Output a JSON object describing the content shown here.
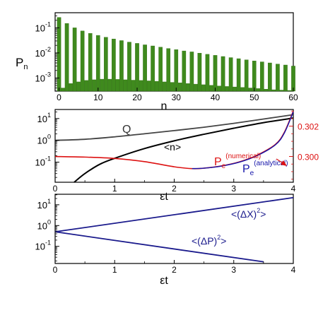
{
  "colors": {
    "bar": "#3f8a1d",
    "bar_edge": "#2f6f12",
    "q_curve": "#444444",
    "n_curve": "#000000",
    "pe_numerical": "#dd1111",
    "pe_analytical": "#1515aa",
    "variance": "#1a1a8c",
    "axis": "#000000"
  },
  "chart_data": [
    {
      "type": "bar",
      "ylabel_main": "P",
      "ylabel_sub": "n",
      "xlabel": "n",
      "xlim": [
        -1,
        60
      ],
      "ylim": [
        0.0003,
        0.4
      ],
      "yscale": "log",
      "yticks": [
        {
          "main": "10",
          "exp": "-1"
        },
        {
          "main": "10",
          "exp": "-2"
        },
        {
          "main": "10",
          "exp": "-3"
        }
      ],
      "xticks": [
        "0",
        "10",
        "20",
        "30",
        "40",
        "50",
        "60"
      ],
      "x": [
        0,
        2,
        4,
        6,
        8,
        10,
        12,
        14,
        16,
        18,
        20,
        22,
        24,
        26,
        28,
        30,
        32,
        34,
        36,
        38,
        40,
        42,
        44,
        46,
        48,
        50,
        52,
        54,
        56,
        58,
        60
      ],
      "values": [
        0.26,
        0.15,
        0.1,
        0.075,
        0.06,
        0.05,
        0.042,
        0.036,
        0.031,
        0.027,
        0.024,
        0.021,
        0.019,
        0.017,
        0.015,
        0.0135,
        0.012,
        0.011,
        0.0098,
        0.0088,
        0.008,
        0.0072,
        0.0065,
        0.0059,
        0.0053,
        0.0048,
        0.0044,
        0.004,
        0.0036,
        0.0033,
        0.003
      ],
      "x_odd": [
        1,
        3,
        5,
        7,
        9,
        11,
        13,
        15,
        17,
        19,
        21,
        23,
        25,
        27,
        29,
        31,
        33,
        35,
        37,
        39,
        41,
        43,
        45,
        47,
        49,
        51,
        53,
        55,
        57,
        59
      ],
      "values_odd": [
        0.0004,
        0.0006,
        0.0007,
        0.0008,
        0.00085,
        0.0009,
        0.0009,
        0.00088,
        0.00085,
        0.00082,
        0.0008,
        0.00077,
        0.00074,
        0.0007,
        0.00067,
        0.00064,
        0.0006,
        0.00057,
        0.00054,
        0.00051,
        0.00048,
        0.00046,
        0.00044,
        0.00042,
        0.0004,
        0.00038,
        0.00036,
        0.00034,
        0.00033,
        0.00032
      ]
    },
    {
      "type": "line",
      "xlabel": "εt",
      "xlim": [
        0,
        4
      ],
      "ylim": [
        0.012,
        26
      ],
      "yscale": "log",
      "xticks": [
        "0",
        "1",
        "2",
        "3",
        "4"
      ],
      "yticks": [
        {
          "main": "10",
          "exp": "1"
        },
        {
          "main": "10",
          "exp": "0"
        },
        {
          "main": "10",
          "exp": "-1"
        }
      ],
      "y2lim": [
        0.2983,
        0.3031
      ],
      "y2ticks": [
        "0.302",
        "0.300"
      ],
      "y2tick_values": [
        0.302,
        0.3
      ],
      "labels": {
        "q": "Q",
        "n": "<n>",
        "pe_num_main": "P",
        "pe_num_sub": "e",
        "pe_num_sup": "(numerical)",
        "pe_an_main": "P",
        "pe_an_sub": "e",
        "pe_an_sup": "(analytical)"
      },
      "series": [
        {
          "key": "Q",
          "x": [
            0,
            0.5,
            1,
            1.5,
            2,
            2.5,
            3,
            3.5,
            4
          ],
          "y": [
            1.0,
            1.12,
            1.45,
            2.0,
            2.8,
            4.0,
            6.0,
            9.5,
            15.0
          ]
        },
        {
          "key": "n",
          "x": [
            0.32,
            0.5,
            0.75,
            1,
            1.5,
            2,
            2.5,
            3,
            3.5,
            4
          ],
          "y": [
            0.012,
            0.03,
            0.08,
            0.15,
            0.42,
            0.95,
            1.9,
            3.6,
            6.5,
            10.5
          ]
        },
        {
          "key": "Pe_numerical",
          "x": [
            0,
            0.5,
            1,
            1.5,
            2,
            2.3,
            2.5,
            2.8,
            3.1,
            3.4,
            3.7,
            3.85,
            4.0
          ],
          "y": [
            0.3,
            0.29996,
            0.29987,
            0.29966,
            0.29932,
            0.2992,
            0.29923,
            0.29938,
            0.29965,
            0.3001,
            0.3008,
            0.3016,
            0.303
          ]
        },
        {
          "key": "Pe_analytical",
          "x": [
            2.3,
            2.5,
            2.8,
            3.1,
            3.4,
            3.7,
            3.85,
            4.0
          ],
          "y": [
            0.2992,
            0.29923,
            0.29937,
            0.29963,
            0.30007,
            0.30077,
            0.30155,
            0.30295
          ]
        }
      ]
    },
    {
      "type": "line",
      "xlabel": "εt",
      "xlim": [
        0,
        4
      ],
      "ylim": [
        0.015,
        32
      ],
      "yscale": "log",
      "xticks": [
        "0",
        "1",
        "2",
        "3",
        "4"
      ],
      "yticks": [
        {
          "main": "10",
          "exp": "1"
        },
        {
          "main": "10",
          "exp": "0"
        },
        {
          "main": "10",
          "exp": "-1"
        }
      ],
      "labels": {
        "dx": "<(ΔX)",
        "dx_exp": "2",
        "dx_end": ">",
        "dp": "<(ΔP)",
        "dp_exp": "2",
        "dp_end": ">"
      },
      "series": [
        {
          "key": "dX2",
          "x": [
            0,
            4
          ],
          "y": [
            0.5,
            22
          ]
        },
        {
          "key": "dP2",
          "x": [
            0,
            3.5
          ],
          "y": [
            0.5,
            0.018
          ]
        }
      ]
    }
  ]
}
